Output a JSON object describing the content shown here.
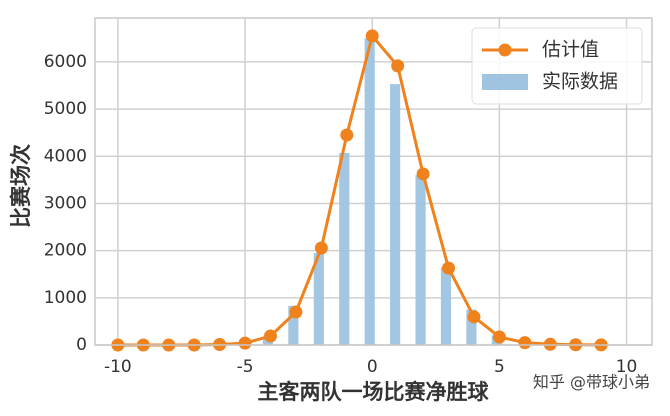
{
  "chart_data": {
    "type": "combo",
    "xlabel": "主客两队一场比赛净胜球",
    "ylabel": "比赛场次",
    "annotation": "知乎 @带球小弟",
    "xlim": [
      -10.9,
      11.0
    ],
    "ylim": [
      0,
      6930
    ],
    "xticks": [
      -10,
      -5,
      0,
      5,
      10
    ],
    "yticks": [
      0,
      1000,
      2000,
      3000,
      4000,
      5000,
      6000
    ],
    "grid": true,
    "legend": "upper right",
    "series": [
      {
        "name": "估计值",
        "type": "line",
        "color": "#f0821e",
        "x": [
          -10,
          -9,
          -8,
          -7,
          -6,
          -5,
          -4,
          -3,
          -2,
          -1,
          0,
          1,
          2,
          3,
          4,
          5,
          6,
          7,
          8,
          9
        ],
        "values": [
          0,
          0,
          0,
          0,
          10,
          40,
          190,
          700,
          2055,
          4450,
          6550,
          5915,
          3625,
          1630,
          595,
          170,
          50,
          15,
          5,
          2
        ]
      },
      {
        "name": "实际数据",
        "type": "bar",
        "color": "#9ec4e0",
        "x": [
          -4,
          -3,
          -2,
          -1,
          0,
          1,
          2,
          3,
          4,
          5
        ],
        "values": [
          180,
          830,
          1950,
          4070,
          6500,
          5530,
          3600,
          1650,
          750,
          200
        ]
      }
    ]
  }
}
